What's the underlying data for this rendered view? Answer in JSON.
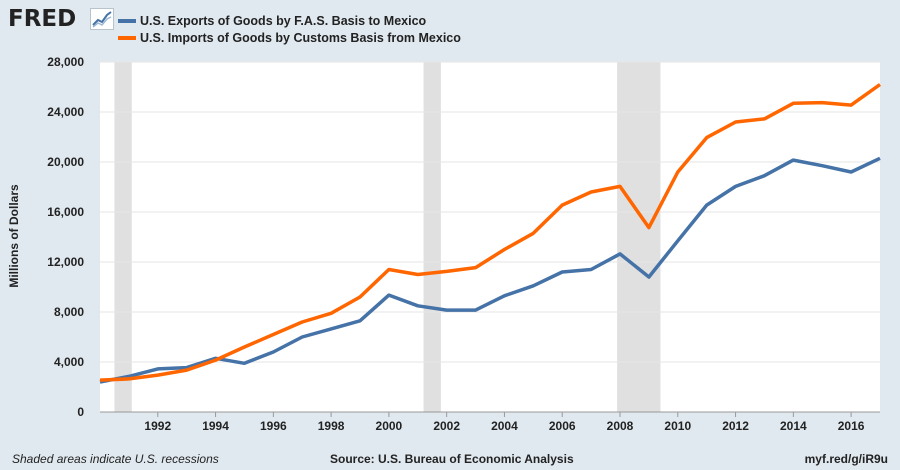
{
  "header": {
    "logo_text": "FRED",
    "logo_icon": "line-chart-icon"
  },
  "footer": {
    "note": "Shaded areas indicate U.S. recessions",
    "source": "Source: U.S. Bureau of Economic Analysis",
    "link": "myf.red/g/iR9u"
  },
  "colors": {
    "background": "#e1e9f0",
    "plot_background": "#ffffff",
    "recession": "#e0e0e0",
    "exports": "#4572a7",
    "imports": "#ff6600"
  },
  "chart_data": {
    "type": "line",
    "title": "",
    "xlabel": "",
    "ylabel": "Millions of Dollars",
    "xlim": [
      1990.0,
      2017.0
    ],
    "ylim": [
      0,
      28000
    ],
    "y_ticks": [
      0,
      4000,
      8000,
      12000,
      16000,
      20000,
      24000,
      28000
    ],
    "y_tick_labels": [
      "0",
      "4,000",
      "8,000",
      "12,000",
      "16,000",
      "20,000",
      "24,000",
      "28,000"
    ],
    "x_ticks": [
      1992,
      1994,
      1996,
      1998,
      2000,
      2002,
      2004,
      2006,
      2008,
      2010,
      2012,
      2014,
      2016
    ],
    "x_tick_labels": [
      "1992",
      "1994",
      "1996",
      "1998",
      "2000",
      "2002",
      "2004",
      "2006",
      "2008",
      "2010",
      "2012",
      "2014",
      "2016"
    ],
    "grid": true,
    "legend_position": "top-left",
    "recessions": [
      [
        1990.5,
        1991.1
      ],
      [
        2001.2,
        2001.8
      ],
      [
        2007.9,
        2009.4
      ]
    ],
    "x": [
      1990,
      1991,
      1992,
      1993,
      1994,
      1995,
      1996,
      1997,
      1998,
      1999,
      2000,
      2001,
      2002,
      2003,
      2004,
      2005,
      2006,
      2007,
      2008,
      2009,
      2010,
      2011,
      2012,
      2013,
      2014,
      2015,
      2016,
      2017
    ],
    "series": [
      {
        "name": "U.S. Exports of Goods by F.A.S. Basis to Mexico",
        "color": "#4572a7",
        "values": [
          2400,
          2850,
          3450,
          3550,
          4300,
          3900,
          4800,
          6000,
          6650,
          7300,
          9350,
          8500,
          8150,
          8150,
          9300,
          10100,
          11200,
          11400,
          12650,
          10800,
          13700,
          16550,
          18050,
          18900,
          20150,
          19700,
          19200,
          20300
        ]
      },
      {
        "name": "U.S. Imports of Goods by Customs Basis from Mexico",
        "color": "#ff6600",
        "values": [
          2550,
          2650,
          2950,
          3350,
          4150,
          5200,
          6200,
          7200,
          7900,
          9200,
          11400,
          11000,
          11250,
          11550,
          13000,
          14300,
          16550,
          17600,
          18050,
          14750,
          19200,
          21950,
          23200,
          23450,
          24700,
          24750,
          24550,
          26200
        ]
      }
    ]
  }
}
